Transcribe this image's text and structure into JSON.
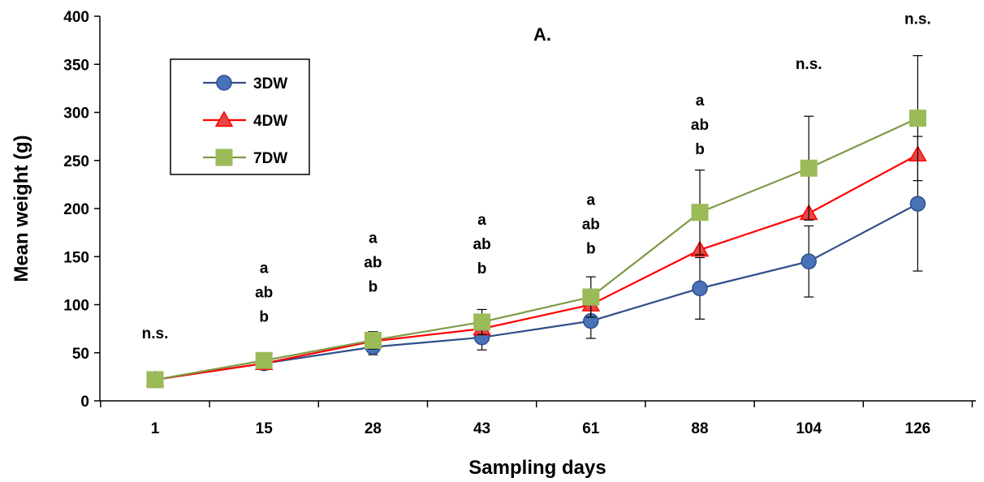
{
  "chart_data": {
    "type": "line",
    "title": "A.",
    "xlabel": "Sampling days",
    "ylabel": "Mean weight (g)",
    "categories": [
      "1",
      "15",
      "28",
      "43",
      "61",
      "88",
      "104",
      "126"
    ],
    "ylim": [
      0,
      400
    ],
    "yticks": [
      "0",
      "50",
      "100",
      "150",
      "200",
      "250",
      "300",
      "350",
      "400"
    ],
    "grid": false,
    "legend_position": "top-left",
    "series": [
      {
        "name": "3DW",
        "color": "#4a72b8",
        "line_color": "#2f4f8a",
        "marker": "circle",
        "values": [
          22,
          39,
          56,
          66,
          83,
          117,
          145,
          205
        ],
        "error": [
          0,
          3,
          8,
          13,
          18,
          32,
          37,
          70
        ]
      },
      {
        "name": "4DW",
        "color": "#e84646",
        "line_color": "#ff0000",
        "marker": "triangle",
        "values": [
          22,
          39,
          62,
          75,
          100,
          157,
          195,
          256
        ],
        "error": [
          0,
          0,
          0,
          0,
          0,
          0,
          0,
          0
        ]
      },
      {
        "name": "7DW",
        "color": "#9bbb59",
        "line_color": "#7f9a48",
        "marker": "square",
        "values": [
          22,
          42,
          63,
          82,
          108,
          196,
          242,
          294
        ],
        "error": [
          0,
          3,
          9,
          13,
          21,
          44,
          54,
          65
        ]
      }
    ],
    "annotations": [
      {
        "x": "1",
        "lines": [
          "n.s."
        ],
        "y": 65
      },
      {
        "x": "15",
        "lines": [
          "a",
          "ab",
          "b"
        ],
        "y": 133
      },
      {
        "x": "28",
        "lines": [
          "a",
          "ab",
          "b"
        ],
        "y": 164
      },
      {
        "x": "43",
        "lines": [
          "a",
          "ab",
          "b"
        ],
        "y": 183
      },
      {
        "x": "61",
        "lines": [
          "a",
          "ab",
          "b"
        ],
        "y": 204
      },
      {
        "x": "88",
        "lines": [
          "a",
          "ab",
          "b"
        ],
        "y": 307
      },
      {
        "x": "104",
        "lines": [
          "n.s."
        ],
        "y": 345
      },
      {
        "x": "126",
        "lines": [
          "n.s."
        ],
        "y": 392
      }
    ]
  }
}
